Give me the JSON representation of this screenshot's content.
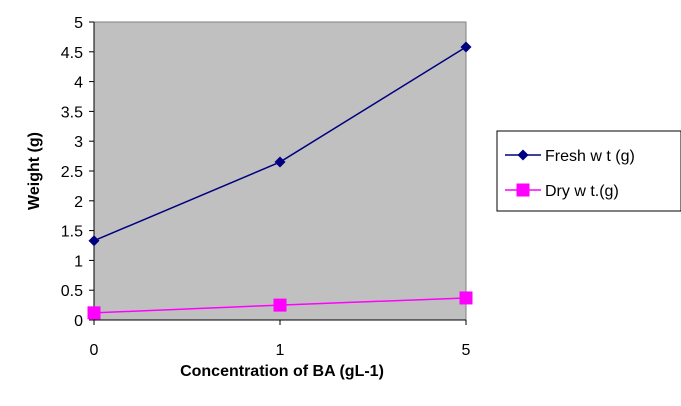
{
  "chart_data": {
    "type": "line",
    "categories": [
      "0",
      "1",
      "5"
    ],
    "series": [
      {
        "name": "Fresh w t (g)",
        "values": [
          1.33,
          2.65,
          4.58
        ],
        "color": "#000080",
        "marker": "diamond"
      },
      {
        "name": "Dry w t.(g)",
        "values": [
          0.12,
          0.25,
          0.37
        ],
        "color": "#FF00FF",
        "marker": "square"
      }
    ],
    "title": "",
    "xlabel": "Concentration of BA (gL-1)",
    "ylabel": "Weight (g)",
    "ylim": [
      0,
      5
    ],
    "yticks": [
      "0",
      "0.5",
      "1",
      "1.5",
      "2",
      "2.5",
      "3",
      "3.5",
      "4",
      "4.5",
      "5"
    ],
    "grid": false,
    "legend": "right",
    "plot_background": "#C0C0C0"
  }
}
